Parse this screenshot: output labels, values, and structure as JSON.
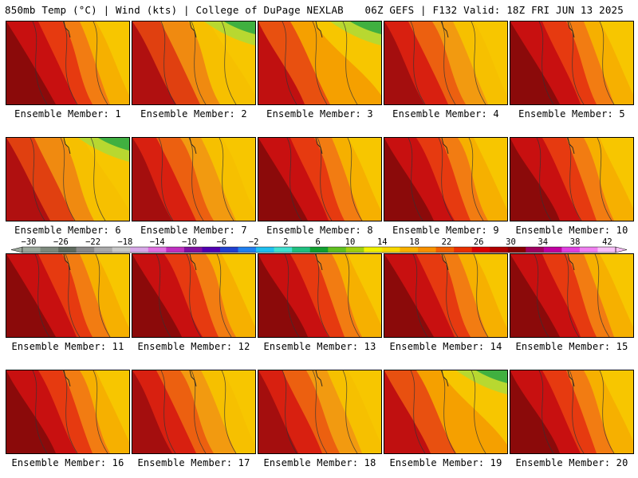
{
  "header": {
    "left": "850mb Temp (°C) | Wind (kts) | College of DuPage NEXLAB",
    "right": "06Z GEFS | F132 Valid: 18Z FRI JUN 13 2025"
  },
  "caption_prefix": "Ensemble Member: ",
  "members": [
    {
      "label": "Ensemble Member: 1",
      "profile": "hot"
    },
    {
      "label": "Ensemble Member: 2",
      "profile": "cool-ne"
    },
    {
      "label": "Ensemble Member: 3",
      "profile": "cool-n"
    },
    {
      "label": "Ensemble Member: 4",
      "profile": "mid"
    },
    {
      "label": "Ensemble Member: 5",
      "profile": "hot"
    },
    {
      "label": "Ensemble Member: 6",
      "profile": "cool-ne"
    },
    {
      "label": "Ensemble Member: 7",
      "profile": "mid"
    },
    {
      "label": "Ensemble Member: 8",
      "profile": "hot"
    },
    {
      "label": "Ensemble Member: 9",
      "profile": "hot"
    },
    {
      "label": "Ensemble Member: 10",
      "profile": "hot"
    },
    {
      "label": "Ensemble Member: 11",
      "profile": "hot"
    },
    {
      "label": "Ensemble Member: 12",
      "profile": "hot"
    },
    {
      "label": "Ensemble Member: 13",
      "profile": "hot"
    },
    {
      "label": "Ensemble Member: 14",
      "profile": "hot"
    },
    {
      "label": "Ensemble Member: 15",
      "profile": "hot"
    },
    {
      "label": "Ensemble Member: 16",
      "profile": "hot"
    },
    {
      "label": "Ensemble Member: 17",
      "profile": "mid"
    },
    {
      "label": "Ensemble Member: 18",
      "profile": "mid"
    },
    {
      "label": "Ensemble Member: 19",
      "profile": "cool-n"
    },
    {
      "label": "Ensemble Member: 20",
      "profile": "hot"
    }
  ],
  "colorbar": {
    "ticks": [
      "−30",
      "−26",
      "−22",
      "−18",
      "−14",
      "−10",
      "−6",
      "−2",
      "2",
      "6",
      "10",
      "14",
      "18",
      "22",
      "26",
      "30",
      "34",
      "38",
      "42"
    ],
    "colors": [
      "#9aa69a",
      "#7d8a7d",
      "#5f6b5f",
      "#8a8a8a",
      "#aaaaaa",
      "#c8c8c8",
      "#d8a8e8",
      "#e070e0",
      "#c030c0",
      "#8010a0",
      "#5000b0",
      "#2040d0",
      "#2080f0",
      "#20c0f0",
      "#40e0d0",
      "#20c080",
      "#10a030",
      "#60c020",
      "#a0d010",
      "#f0f000",
      "#f8d800",
      "#f8b000",
      "#f89000",
      "#f06000",
      "#e83000",
      "#d80000",
      "#b00000",
      "#880000",
      "#a00060",
      "#c000a0",
      "#e040e0",
      "#f080f0",
      "#f8c0f8"
    ]
  }
}
